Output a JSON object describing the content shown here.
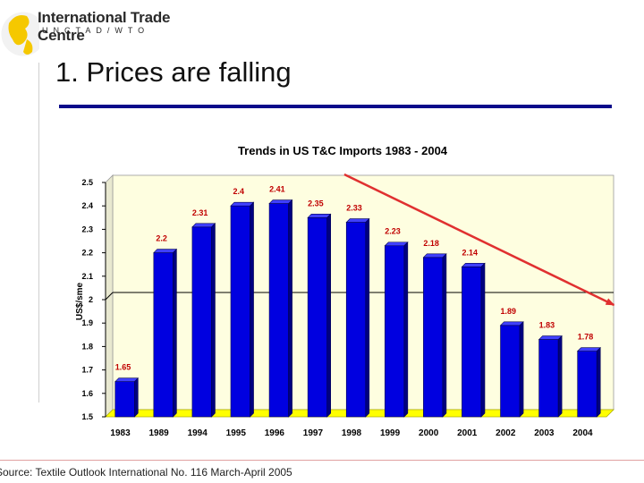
{
  "header": {
    "org_name": "International Trade Centre",
    "org_sub": "UNCTAD/WTO",
    "slide_title": "1. Prices are falling"
  },
  "footer": {
    "source": "Source: Textile Outlook International No. 116 March-April 2005"
  },
  "colors": {
    "bar": "#0000e0",
    "plot_bg": "#fefee0",
    "floor": "#ffff00",
    "label": "#c00000",
    "trend_arrow": "#e03030",
    "title_rule": "#0a0a8a"
  },
  "chart_data": {
    "type": "bar",
    "title": "Trends in US T&C Imports 1983 - 2004",
    "ylabel": "US$/sme",
    "xlabel": "",
    "ylim": [
      1.5,
      2.5
    ],
    "yticks": [
      "2.5",
      "2.4",
      "2.3",
      "2.2",
      "2.1",
      "2",
      "1.9",
      "1.8",
      "1.7",
      "1.6",
      "1.5"
    ],
    "categories": [
      "1983",
      "1989",
      "1994",
      "1995",
      "1996",
      "1997",
      "1998",
      "1999",
      "2000",
      "2001",
      "2002",
      "2003",
      "2004"
    ],
    "values": [
      1.65,
      2.2,
      2.31,
      2.4,
      2.41,
      2.35,
      2.33,
      2.23,
      2.18,
      2.14,
      1.89,
      1.83,
      1.78
    ],
    "data_labels": [
      "1.65",
      "2.2",
      "2.31",
      "2.4",
      "2.41",
      "2.35",
      "2.33",
      "2.23",
      "2.18",
      "2.14",
      "1.89",
      "1.83",
      "1.78"
    ],
    "grid": "horizontal line at 2",
    "legend": "none",
    "annotations": [
      {
        "type": "arrow",
        "from_category": "1997",
        "to_category": "2004",
        "meaning": "downward trend"
      }
    ]
  }
}
